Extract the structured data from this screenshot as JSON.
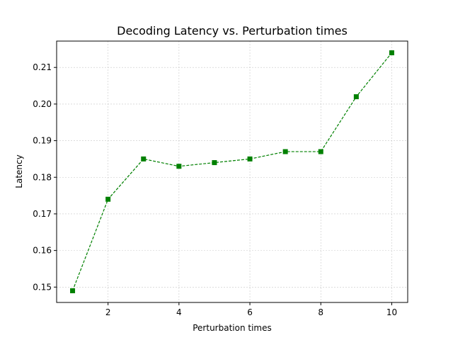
{
  "chart_data": {
    "type": "line",
    "title": "Decoding Latency vs. Perturbation times",
    "xlabel": "Perturbation times",
    "ylabel": "Latency",
    "xlim": [
      0.55,
      10.45
    ],
    "ylim": [
      0.1458,
      0.2172
    ],
    "xticks": [
      2,
      4,
      6,
      8,
      10
    ],
    "yticks": [
      0.15,
      0.16,
      0.17,
      0.18,
      0.19,
      0.2,
      0.21
    ],
    "ytick_labels": [
      "0.15",
      "0.16",
      "0.17",
      "0.18",
      "0.19",
      "0.20",
      "0.21"
    ],
    "grid": true,
    "series": [
      {
        "color": "#008000",
        "line_style": "dashed",
        "marker": "square",
        "x": [
          1,
          2,
          3,
          4,
          5,
          6,
          7,
          8,
          9,
          10
        ],
        "values": [
          0.149,
          0.174,
          0.185,
          0.183,
          0.184,
          0.185,
          0.187,
          0.187,
          0.202,
          0.214
        ]
      }
    ]
  }
}
